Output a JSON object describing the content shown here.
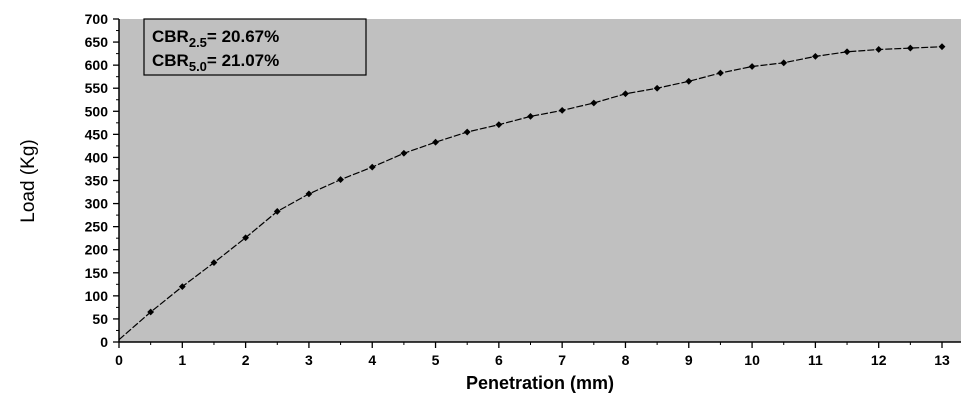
{
  "chart_data": {
    "type": "line",
    "xlabel": "Penetration (mm)",
    "ylabel": "Load (Kg)",
    "xlim": [
      0,
      13.3
    ],
    "ylim": [
      0,
      700
    ],
    "x_ticks": [
      0,
      1,
      2,
      3,
      4,
      5,
      6,
      7,
      8,
      9,
      10,
      11,
      12,
      13
    ],
    "y_ticks": [
      0,
      50,
      100,
      150,
      200,
      250,
      300,
      350,
      400,
      450,
      500,
      550,
      600,
      650,
      700
    ],
    "series": [
      {
        "x": [
          0,
          0.5,
          1,
          1.5,
          2,
          2.5,
          3,
          3.5,
          4,
          4.5,
          5,
          5.5,
          6,
          6.5,
          7,
          7.5,
          8,
          8.5,
          9,
          9.5,
          10,
          10.5,
          11,
          11.5,
          12,
          12.5,
          13
        ],
        "y": [
          5,
          65,
          120,
          172,
          226,
          283,
          321,
          352,
          379,
          409,
          433,
          455,
          471,
          489,
          502,
          518,
          538,
          550,
          565,
          583,
          597,
          605,
          619,
          629,
          634,
          637,
          640
        ]
      }
    ],
    "annotations": [
      {
        "base": "CBR",
        "sub": "2.5",
        "rest": "= 20.67%"
      },
      {
        "base": "CBR",
        "sub": "5.0",
        "rest": "= 21.07%"
      }
    ],
    "grid": false,
    "plot_background": "#c0c0c0",
    "line_color": "#000000",
    "marker": "diamond"
  }
}
